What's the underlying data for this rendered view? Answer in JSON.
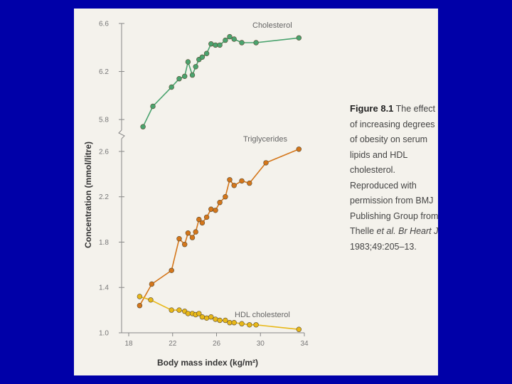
{
  "chart_data": {
    "type": "line",
    "title": "",
    "xlabel": "Body mass index (kg/m²)",
    "ylabel": "Concentration (mmol/litre)",
    "x_ticks": [
      18,
      22,
      26,
      30,
      34
    ],
    "x_tick_labels": [
      "18",
      "22",
      "26",
      "30",
      "34"
    ],
    "xlim": [
      18,
      34
    ],
    "upper_panel": {
      "ylim": [
        5.7,
        6.6
      ],
      "y_ticks": [
        5.8,
        6.2,
        6.6
      ],
      "y_tick_labels": [
        "5.8",
        "6.2",
        "6.6"
      ]
    },
    "lower_panel": {
      "ylim": [
        1.0,
        2.7
      ],
      "y_ticks": [
        1.0,
        1.4,
        1.8,
        2.2,
        2.6
      ],
      "y_tick_labels": [
        "1.0",
        "1.4",
        "1.8",
        "2.2",
        "2.6"
      ]
    },
    "series": [
      {
        "name": "Cholesterol",
        "panel": "upper",
        "color": "#4aa36e",
        "points": [
          [
            19.3,
            5.74
          ],
          [
            20.2,
            5.91
          ],
          [
            21.9,
            6.07
          ],
          [
            22.6,
            6.14
          ],
          [
            23.1,
            6.16
          ],
          [
            23.4,
            6.28
          ],
          [
            23.8,
            6.17
          ],
          [
            24.1,
            6.24
          ],
          [
            24.4,
            6.3
          ],
          [
            24.7,
            6.32
          ],
          [
            25.1,
            6.35
          ],
          [
            25.5,
            6.43
          ],
          [
            25.9,
            6.42
          ],
          [
            26.3,
            6.42
          ],
          [
            26.8,
            6.46
          ],
          [
            27.2,
            6.49
          ],
          [
            27.6,
            6.47
          ],
          [
            28.3,
            6.44
          ],
          [
            29.6,
            6.44
          ],
          [
            33.5,
            6.48
          ]
        ]
      },
      {
        "name": "Triglycerides",
        "panel": "lower",
        "color": "#d4761a",
        "points": [
          [
            19.0,
            1.24
          ],
          [
            20.1,
            1.43
          ],
          [
            21.9,
            1.55
          ],
          [
            22.6,
            1.83
          ],
          [
            23.1,
            1.78
          ],
          [
            23.4,
            1.88
          ],
          [
            23.8,
            1.84
          ],
          [
            24.1,
            1.89
          ],
          [
            24.4,
            2.0
          ],
          [
            24.7,
            1.97
          ],
          [
            25.1,
            2.02
          ],
          [
            25.5,
            2.09
          ],
          [
            25.9,
            2.08
          ],
          [
            26.3,
            2.15
          ],
          [
            26.8,
            2.2
          ],
          [
            27.2,
            2.35
          ],
          [
            27.6,
            2.3
          ],
          [
            28.3,
            2.34
          ],
          [
            29.0,
            2.32
          ],
          [
            30.5,
            2.5
          ],
          [
            33.5,
            2.62
          ]
        ]
      },
      {
        "name": "HDL cholesterol",
        "panel": "lower",
        "color": "#e8b818",
        "points": [
          [
            19.0,
            1.32
          ],
          [
            20.0,
            1.29
          ],
          [
            21.9,
            1.2
          ],
          [
            22.6,
            1.2
          ],
          [
            23.1,
            1.19
          ],
          [
            23.4,
            1.17
          ],
          [
            23.8,
            1.17
          ],
          [
            24.1,
            1.16
          ],
          [
            24.4,
            1.17
          ],
          [
            24.7,
            1.14
          ],
          [
            25.1,
            1.13
          ],
          [
            25.5,
            1.14
          ],
          [
            25.9,
            1.12
          ],
          [
            26.3,
            1.11
          ],
          [
            26.8,
            1.11
          ],
          [
            27.2,
            1.09
          ],
          [
            27.6,
            1.09
          ],
          [
            28.3,
            1.08
          ],
          [
            29.0,
            1.07
          ],
          [
            29.6,
            1.07
          ],
          [
            33.5,
            1.03
          ]
        ]
      }
    ]
  },
  "caption": {
    "fig_label": "Figure 8.1",
    "text_1": " The effect of increasing degrees of obesity on serum lipids and HDL cholesterol. Reproduced with permission from BMJ Publishing Group from Thelle ",
    "citation": "et al. Br Heart J",
    "text_2": " 1983;49:205–13."
  }
}
